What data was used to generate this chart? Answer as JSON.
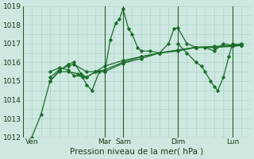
{
  "bg_color": "#cde8e0",
  "grid_color": "#b0d4c8",
  "line_color": "#1a6e2a",
  "xlabel": "Pression niveau de la mer( hPa )",
  "ylim": [
    1012,
    1019
  ],
  "yticks": [
    1012,
    1013,
    1014,
    1015,
    1016,
    1017,
    1018,
    1019
  ],
  "xtick_labels": [
    "Ven",
    "Mar",
    "Sam",
    "Dim",
    "Lun"
  ],
  "xtick_positions": [
    0,
    4,
    5,
    8,
    11
  ],
  "xlim": [
    -0.5,
    12.0
  ],
  "series": [
    [
      0.0,
      1012.0,
      0.5,
      1013.2,
      1.0,
      1015.0,
      1.5,
      1015.5,
      2.0,
      1015.5,
      2.5,
      1015.4,
      2.8,
      1015.2,
      3.0,
      1014.8,
      3.3,
      1014.5,
      3.7,
      1015.5,
      4.0,
      1015.5,
      4.3,
      1017.2,
      4.6,
      1018.1,
      4.8,
      1018.3,
      5.0,
      1018.85,
      5.3,
      1017.8,
      5.5,
      1017.5,
      5.8,
      1016.8,
      6.0,
      1016.6,
      6.5,
      1016.6,
      7.0,
      1016.5,
      7.5,
      1017.0,
      7.8,
      1017.8,
      8.0,
      1017.85,
      8.5,
      1017.0,
      9.0,
      1016.8,
      9.5,
      1016.8,
      10.0,
      1016.6,
      10.5,
      1017.0,
      11.0,
      1016.9,
      11.5,
      1017.0
    ],
    [
      1.0,
      1015.0,
      1.5,
      1015.55,
      2.0,
      1015.9,
      2.3,
      1016.0,
      2.7,
      1015.4,
      3.0,
      1015.2,
      3.5,
      1015.5,
      4.0,
      1015.5,
      5.0,
      1015.95,
      6.0,
      1016.2,
      7.0,
      1016.5,
      8.0,
      1016.6,
      9.0,
      1016.8,
      10.0,
      1016.8,
      11.0,
      1016.85,
      11.5,
      1016.9
    ],
    [
      1.0,
      1015.2,
      1.5,
      1015.6,
      2.0,
      1015.8,
      2.3,
      1015.9,
      3.0,
      1015.5,
      3.5,
      1015.5,
      4.0,
      1015.8,
      5.0,
      1016.1,
      6.0,
      1016.3,
      7.0,
      1016.5,
      8.0,
      1016.65,
      9.0,
      1016.8,
      10.0,
      1016.85,
      11.0,
      1016.9,
      11.5,
      1016.9
    ],
    [
      1.0,
      1015.5,
      1.5,
      1015.7,
      2.0,
      1015.6,
      2.3,
      1015.3,
      3.0,
      1015.2,
      3.5,
      1015.5,
      4.0,
      1015.6,
      5.0,
      1016.0,
      6.0,
      1016.3,
      7.0,
      1016.5,
      8.0,
      1016.65,
      9.0,
      1016.8,
      10.0,
      1016.8,
      11.0,
      1016.9,
      11.5,
      1016.9
    ],
    [
      8.0,
      1017.0,
      8.5,
      1016.5,
      9.0,
      1016.0,
      9.3,
      1015.8,
      9.5,
      1015.5,
      9.8,
      1015.0,
      10.0,
      1014.7,
      10.2,
      1014.5,
      10.5,
      1015.2,
      10.8,
      1016.3,
      11.0,
      1017.0,
      11.5,
      1016.9
    ]
  ]
}
